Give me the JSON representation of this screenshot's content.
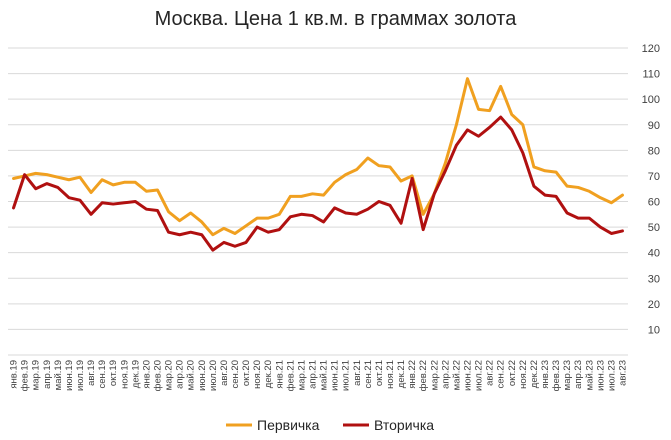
{
  "chart_data": {
    "type": "line",
    "title": "Москва. Цена 1 кв.м. в граммах золота",
    "xlabel": "",
    "ylabel": "",
    "ylim": [
      0,
      120
    ],
    "yticks": [
      10,
      20,
      30,
      40,
      50,
      60,
      70,
      80,
      90,
      100,
      110,
      120
    ],
    "grid": "horizontal",
    "legend": "bottom",
    "categories": [
      "янв.19",
      "фев.19",
      "мар.19",
      "апр.19",
      "май.19",
      "июн.19",
      "июл.19",
      "авг.19",
      "сен.19",
      "окт.19",
      "ноя.19",
      "дек.19",
      "янв.20",
      "фев.20",
      "мар.20",
      "апр.20",
      "май.20",
      "июн.20",
      "июл.20",
      "авг.20",
      "сен.20",
      "окт.20",
      "ноя.20",
      "дек.20",
      "янв.21",
      "фев.21",
      "мар.21",
      "апр.21",
      "май.21",
      "июн.21",
      "июл.21",
      "авг.21",
      "сен.21",
      "окт.21",
      "ноя.21",
      "дек.21",
      "янв.22",
      "фев.22",
      "мар.22",
      "апр.22",
      "май.22",
      "июн.22",
      "июл.22",
      "авг.22",
      "сен.22",
      "окт.22",
      "ноя.22",
      "дек.22",
      "янв.23",
      "фев.23",
      "мар.23",
      "апр.23",
      "май.23",
      "июн.23",
      "июл.23",
      "авг.23"
    ],
    "series": [
      {
        "name": "Первичка",
        "color": "#F0A020",
        "values": [
          69,
          70,
          71,
          70.5,
          69.5,
          68.5,
          69.5,
          63.5,
          68.5,
          66.5,
          67.5,
          67.5,
          64,
          64.5,
          56,
          52.5,
          55.5,
          52,
          47,
          49.5,
          47.5,
          50.5,
          53.5,
          53.5,
          55,
          62,
          62,
          63,
          62.5,
          67.5,
          70.5,
          72.5,
          77,
          74,
          73.5,
          68,
          70,
          55,
          63,
          75,
          90,
          108,
          96,
          95.5,
          105,
          94,
          90,
          73.5,
          72,
          71.5,
          66,
          65.5,
          64,
          61.5,
          59.5,
          62.5
        ]
      },
      {
        "name": "Вторичка",
        "color": "#B01010",
        "values": [
          57.5,
          70.5,
          65,
          67,
          65.5,
          61.5,
          60.5,
          55,
          59.5,
          59,
          59.5,
          60,
          57,
          56.5,
          48,
          47,
          48,
          47,
          41,
          44,
          42.5,
          44,
          50,
          48,
          49,
          54,
          55,
          54.5,
          52,
          57.5,
          55.5,
          55,
          57,
          60,
          58.5,
          51.5,
          69,
          49,
          63,
          72,
          82,
          88,
          85.5,
          89,
          93,
          88,
          79,
          66,
          62.5,
          62,
          55.5,
          53.5,
          53.5,
          50,
          47.5,
          48.5
        ]
      }
    ]
  }
}
